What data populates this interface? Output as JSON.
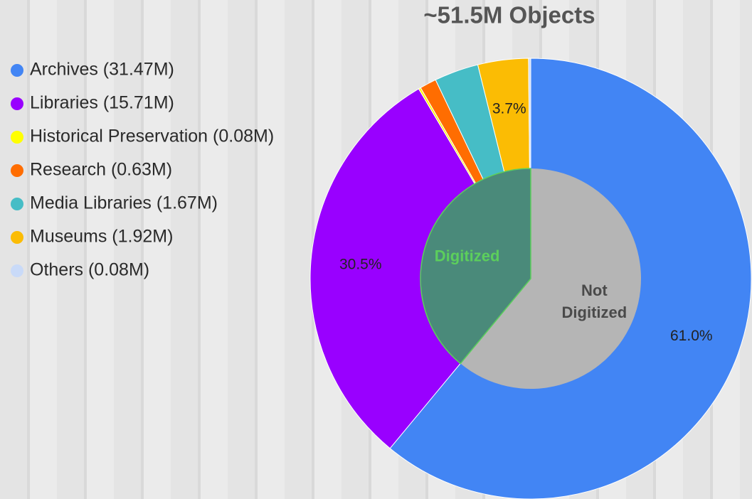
{
  "chart_data": {
    "type": "pie",
    "title": "~51.5M Objects",
    "categories": [
      "Archives (31.47M)",
      "Libraries (15.71M)",
      "Historical Preservation (0.08M)",
      "Research (0.63M)",
      "Media Libraries (1.67M)",
      "Museums (1.92M)",
      "Others (0.08M)"
    ],
    "values": [
      61.0,
      30.5,
      0.16,
      1.22,
      3.24,
      3.7,
      0.16
    ],
    "value_labels": [
      "61.0%",
      "30.5%",
      null,
      null,
      null,
      "3.7%",
      null
    ],
    "colors": [
      "#4285f4",
      "#9900ff",
      "#ffff00",
      "#ff6d01",
      "#46bdc6",
      "#fbbc04",
      "#c9daf8"
    ],
    "inner": {
      "categories": [
        "Not Digitized",
        "Digitized"
      ],
      "values": [
        61,
        39
      ],
      "colors": [
        "#b5b5b5",
        "#4a8a7a"
      ],
      "label_colors": [
        "#4a4a4a",
        "#5ccf5c"
      ]
    }
  }
}
